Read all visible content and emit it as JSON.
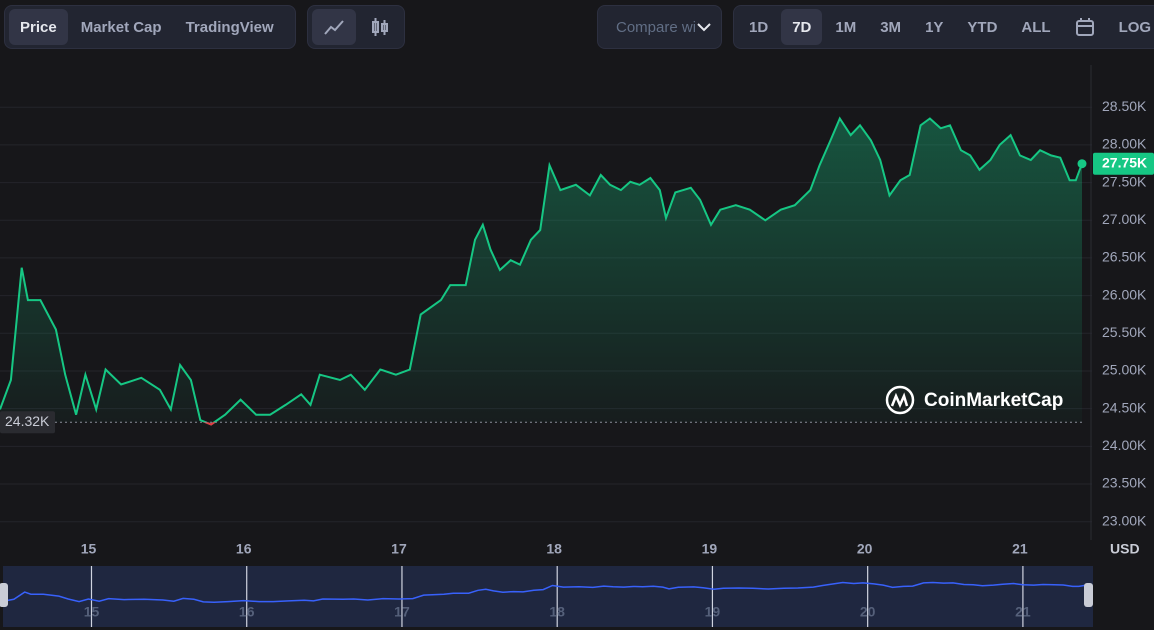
{
  "toolbar": {
    "tabs": [
      "Price",
      "Market Cap",
      "TradingView"
    ],
    "compare": "Compare with",
    "ranges": [
      "1D",
      "7D",
      "1M",
      "3M",
      "1Y",
      "YTD",
      "ALL"
    ],
    "log": "LOG"
  },
  "chart_data": {
    "type": "line",
    "watermark": "CoinMarketCap",
    "y_unit": "USD",
    "x": [
      14.43,
      14.5,
      14.57,
      14.61,
      14.69,
      14.79,
      14.85,
      14.92,
      14.98,
      15.05,
      15.11,
      15.21,
      15.34,
      15.46,
      15.53,
      15.59,
      15.66,
      15.72,
      15.79,
      15.88,
      15.98,
      16.08,
      16.17,
      16.27,
      16.37,
      16.43,
      16.49,
      16.62,
      16.69,
      16.78,
      16.88,
      16.98,
      17.07,
      17.14,
      17.27,
      17.33,
      17.43,
      17.49,
      17.54,
      17.59,
      17.65,
      17.72,
      17.78,
      17.85,
      17.91,
      17.97,
      18.04,
      18.14,
      18.23,
      18.3,
      18.36,
      18.43,
      18.49,
      18.55,
      18.62,
      18.68,
      18.72,
      18.78,
      18.88,
      18.94,
      19.01,
      19.07,
      19.17,
      19.26,
      19.36,
      19.46,
      19.55,
      19.65,
      19.71,
      19.78,
      19.84,
      19.91,
      19.97,
      20.04,
      20.1,
      20.16,
      20.23,
      20.29,
      20.36,
      20.42,
      20.49,
      20.55,
      20.62,
      20.68,
      20.74,
      20.81,
      20.87,
      20.94,
      21.0,
      21.07,
      21.13,
      21.2,
      21.26,
      21.32,
      21.36,
      21.4
    ],
    "values": [
      24490,
      24880,
      26370,
      25940,
      25940,
      25550,
      24950,
      24420,
      24950,
      24490,
      25020,
      24820,
      24910,
      24750,
      24490,
      25080,
      24880,
      24350,
      24290,
      24420,
      24620,
      24420,
      24420,
      24550,
      24690,
      24550,
      24950,
      24880,
      24950,
      24750,
      25020,
      24950,
      25020,
      25750,
      25940,
      26140,
      26140,
      26740,
      26940,
      26610,
      26340,
      26470,
      26410,
      26740,
      26870,
      27730,
      27400,
      27470,
      27330,
      27600,
      27470,
      27400,
      27510,
      27470,
      27560,
      27400,
      27030,
      27370,
      27430,
      27270,
      26940,
      27140,
      27200,
      27140,
      27000,
      27140,
      27200,
      27400,
      27730,
      28060,
      28350,
      28130,
      28260,
      28060,
      27800,
      27330,
      27530,
      27600,
      28260,
      28350,
      28220,
      28260,
      27930,
      27860,
      27670,
      27800,
      28000,
      28130,
      27860,
      27800,
      27930,
      27860,
      27830,
      27530,
      27530,
      27750
    ],
    "color": "#16c784",
    "below_color": "#ea3943",
    "xlim": [
      14.43,
      21.4
    ],
    "xticks": [
      15,
      16,
      17,
      18,
      19,
      20,
      21
    ],
    "ylim": [
      22890,
      29060
    ],
    "yticks": [
      {
        "value": 23000,
        "label": "23.00K"
      },
      {
        "value": 23500,
        "label": "23.50K"
      },
      {
        "value": 24000,
        "label": "24.00K"
      },
      {
        "value": 24500,
        "label": "24.50K"
      },
      {
        "value": 25000,
        "label": "25.00K"
      },
      {
        "value": 25500,
        "label": "25.50K"
      },
      {
        "value": 26000,
        "label": "26.00K"
      },
      {
        "value": 26500,
        "label": "26.50K"
      },
      {
        "value": 27000,
        "label": "27.00K"
      },
      {
        "value": 27500,
        "label": "27.50K"
      },
      {
        "value": 28000,
        "label": "28.00K"
      },
      {
        "value": 28500,
        "label": "28.50K"
      }
    ],
    "grid": true,
    "last_price": {
      "value": 27750,
      "label": "27.75K"
    },
    "baseline": {
      "value": 24320,
      "label": "24.32K"
    },
    "navigator_color": "#3861fb"
  }
}
